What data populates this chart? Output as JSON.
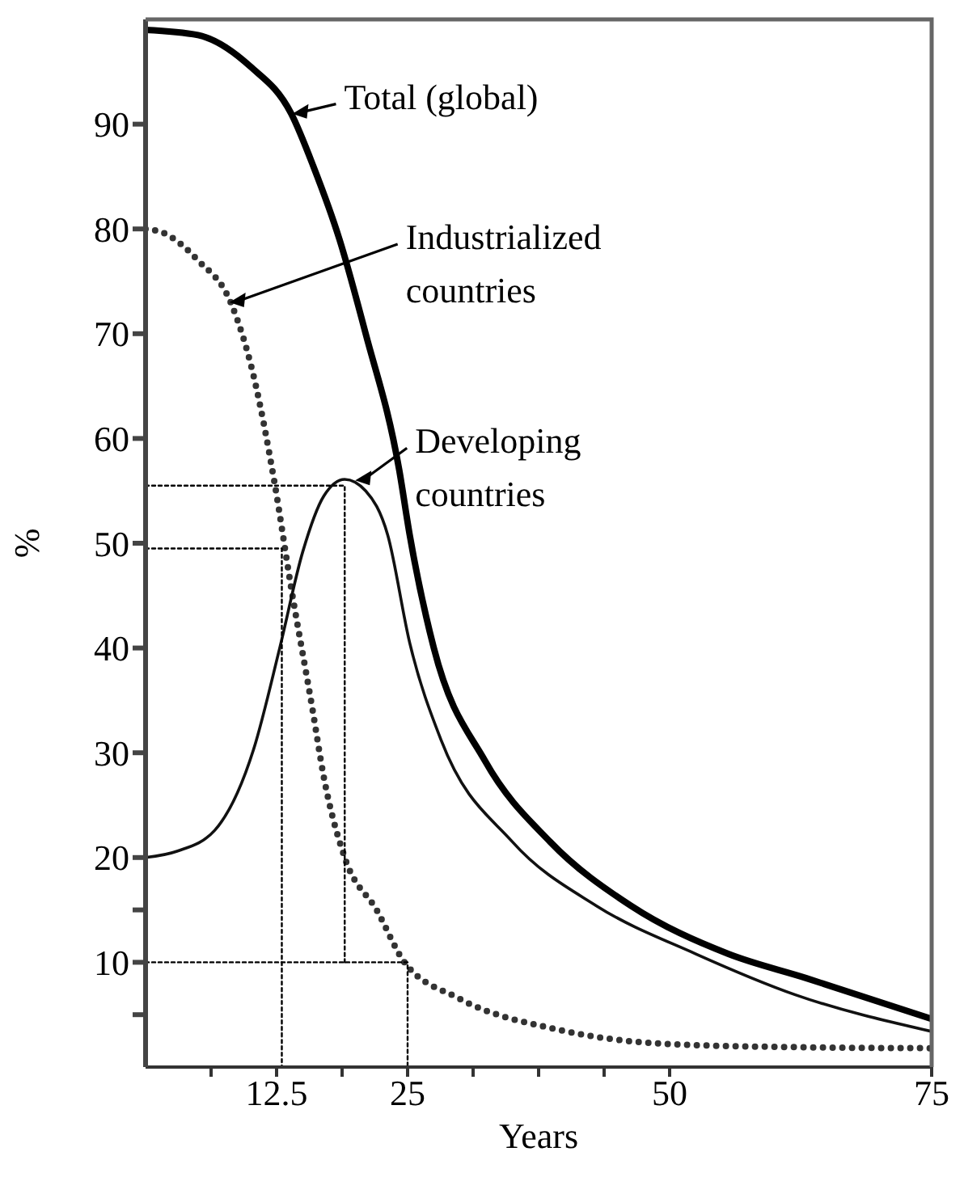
{
  "chart_data": {
    "type": "line",
    "xlabel": "Years",
    "ylabel": "%",
    "xlim": [
      0,
      75
    ],
    "ylim": [
      0,
      100
    ],
    "xticks": [
      {
        "value": 6.25,
        "label": null
      },
      12.5,
      {
        "value": 18.75,
        "label": null
      },
      25,
      {
        "value": 31.25,
        "label": null
      },
      {
        "value": 37.5,
        "label": null
      },
      {
        "value": 43.75,
        "label": null
      },
      50,
      75
    ],
    "yticks": [
      {
        "value": 5,
        "label": null
      },
      10,
      {
        "value": 15,
        "label": null
      },
      20,
      30,
      40,
      50,
      60,
      70,
      80,
      90
    ],
    "marker": "none",
    "series": [
      {
        "color": "#000000",
        "line_style": "solid",
        "x": [
          0,
          5,
          10,
          13.9,
          16,
          18.5,
          21,
          24.2,
          25.2,
          27.5,
          32.4,
          38.6,
          46.3,
          55.6,
          63,
          75
        ],
        "values": [
          99,
          98.5,
          95.5,
          91,
          86,
          79,
          70,
          57,
          50.8,
          40,
          29.2,
          21.5,
          15.4,
          10.8,
          8.5,
          4.6
        ]
      },
      {
        "color": "#333333",
        "line_style": "dotted",
        "x": [
          0,
          1.5,
          5,
          8.2,
          10.3,
          12.3,
          13.9,
          15.9,
          17,
          19,
          22.1,
          24.7,
          29.8,
          39.7,
          49.8,
          62,
          75
        ],
        "values": [
          80,
          79.7,
          77,
          72.8,
          66,
          55.8,
          45.7,
          34.3,
          27.7,
          20,
          14.9,
          10,
          6.6,
          3.5,
          2.2,
          1.9,
          1.8
        ]
      },
      {
        "color": "#111111",
        "line_style": "solid",
        "x": [
          0,
          3,
          6.6,
          10.3,
          12.8,
          15,
          17,
          19,
          21,
          23.1,
          25.2,
          28.2,
          35,
          43,
          52.5,
          62,
          75
        ],
        "values": [
          20,
          20.6,
          22.6,
          30.3,
          40,
          49.2,
          54.5,
          56.1,
          55,
          50.8,
          40.5,
          31.2,
          21.5,
          15.4,
          10.8,
          6.9,
          3.4
        ]
      },
      {
        "color": "#000000",
        "line_style": "dotted",
        "x": [
          0,
          19,
          19
        ],
        "values": [
          55.5,
          55.5,
          10
        ]
      },
      {
        "color": "#000000",
        "line_style": "dotted",
        "x": [
          0,
          13,
          13
        ],
        "values": [
          49.5,
          49.5,
          0
        ]
      },
      {
        "color": "#000000",
        "line_style": "dotted",
        "x": [
          0,
          25,
          25
        ],
        "values": [
          10,
          10,
          0
        ]
      }
    ],
    "annotations": [
      {
        "text": "Total (global)",
        "x": 14,
        "y": 91
      },
      {
        "text": "Industrialized\ncountries",
        "x": 8,
        "y": 73
      },
      {
        "text": "Developing\ncountries",
        "x": 20,
        "y": 56
      }
    ]
  }
}
